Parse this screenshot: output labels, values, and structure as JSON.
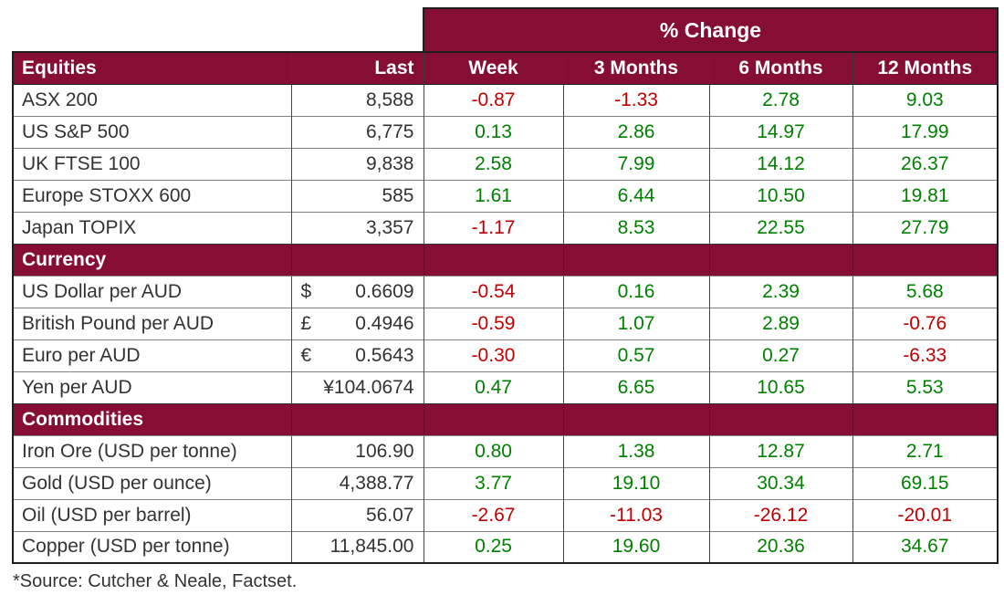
{
  "chart_data": {
    "type": "table",
    "group_header": {
      "label": "% Change",
      "spans_columns": [
        "Week",
        "3 Months",
        "6 Months",
        "12 Months"
      ]
    },
    "columns": [
      "Equities",
      "Last",
      "Week",
      "3 Months",
      "6 Months",
      "12 Months"
    ],
    "sections": [
      {
        "name": "Equities",
        "rows": [
          {
            "label": "ASX 200",
            "last": "8,588",
            "changes": [
              "-0.87",
              "-1.33",
              "2.78",
              "9.03"
            ]
          },
          {
            "label": "US S&P 500",
            "last": "6,775",
            "changes": [
              "0.13",
              "2.86",
              "14.97",
              "17.99"
            ]
          },
          {
            "label": "UK FTSE 100",
            "last": "9,838",
            "changes": [
              "2.58",
              "7.99",
              "14.12",
              "26.37"
            ]
          },
          {
            "label": "Europe STOXX 600",
            "last": "585",
            "changes": [
              "1.61",
              "6.44",
              "10.50",
              "19.81"
            ]
          },
          {
            "label": "Japan TOPIX",
            "last": "3,357",
            "changes": [
              "-1.17",
              "8.53",
              "22.55",
              "27.79"
            ]
          }
        ]
      },
      {
        "name": "Currency",
        "rows": [
          {
            "label": "US Dollar per AUD",
            "currency_symbol": "$",
            "last": "0.6609",
            "changes": [
              "-0.54",
              "0.16",
              "2.39",
              "5.68"
            ]
          },
          {
            "label": "British Pound per AUD",
            "currency_symbol": "£",
            "last": "0.4946",
            "changes": [
              "-0.59",
              "1.07",
              "2.89",
              "-0.76"
            ]
          },
          {
            "label": "Euro per AUD",
            "currency_symbol": "€",
            "last": "0.5643",
            "changes": [
              "-0.30",
              "0.57",
              "0.27",
              "-6.33"
            ]
          },
          {
            "label": "Yen per AUD",
            "currency_symbol": "¥",
            "symbol_attached": true,
            "last": "104.0674",
            "changes": [
              "0.47",
              "6.65",
              "10.65",
              "5.53"
            ]
          }
        ]
      },
      {
        "name": "Commodities",
        "rows": [
          {
            "label": "Iron Ore (USD per tonne)",
            "last": "106.90",
            "changes": [
              "0.80",
              "1.38",
              "12.87",
              "2.71"
            ]
          },
          {
            "label": "Gold (USD per ounce)",
            "last": "4,388.77",
            "changes": [
              "3.77",
              "19.10",
              "30.34",
              "69.15"
            ]
          },
          {
            "label": "Oil (USD per barrel)",
            "last": "56.07",
            "changes": [
              "-2.67",
              "-11.03",
              "-26.12",
              "-20.01"
            ]
          },
          {
            "label": "Copper (USD per tonne)",
            "last": "11,845.00",
            "changes": [
              "0.25",
              "19.60",
              "20.36",
              "34.67"
            ]
          }
        ]
      }
    ],
    "source_note": "*Source: Cutcher & Neale, Factset."
  },
  "colors": {
    "brand_maroon": "#860D33",
    "positive_green": "#008000",
    "negative_red": "#C00000",
    "text_dark": "#333333",
    "header_text": "#FFFFFF"
  }
}
